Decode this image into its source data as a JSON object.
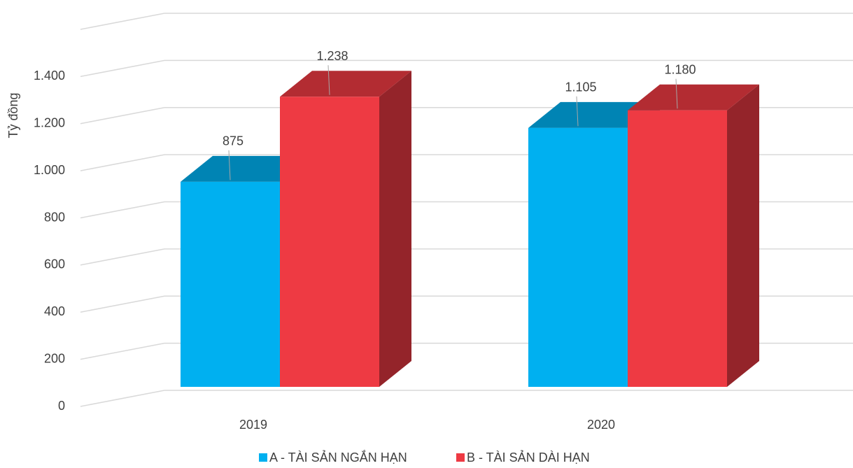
{
  "chart_data": {
    "type": "bar3d",
    "ylabel": "Tỷ đồng",
    "categories": [
      "2019",
      "2020"
    ],
    "series": [
      {
        "name": "A - TÀI SẢN NGẮN HẠN",
        "color": "#00b0f0",
        "values": [
          875,
          1105
        ],
        "value_labels": [
          "875",
          "1.105"
        ]
      },
      {
        "name": "B - TÀI SẢN DÀI HẠN",
        "color": "#ee3a43",
        "values": [
          1238,
          1180
        ],
        "value_labels": [
          "1.238",
          "1.180"
        ]
      }
    ],
    "ylim": [
      0,
      1600
    ],
    "yticks": [
      0,
      200,
      400,
      600,
      800,
      {
        "value": 1000,
        "label": "1.000"
      },
      {
        "value": 1200,
        "label": "1.200"
      },
      {
        "value": 1400,
        "label": "1.400"
      }
    ],
    "grid": true,
    "legend": "bottom"
  }
}
